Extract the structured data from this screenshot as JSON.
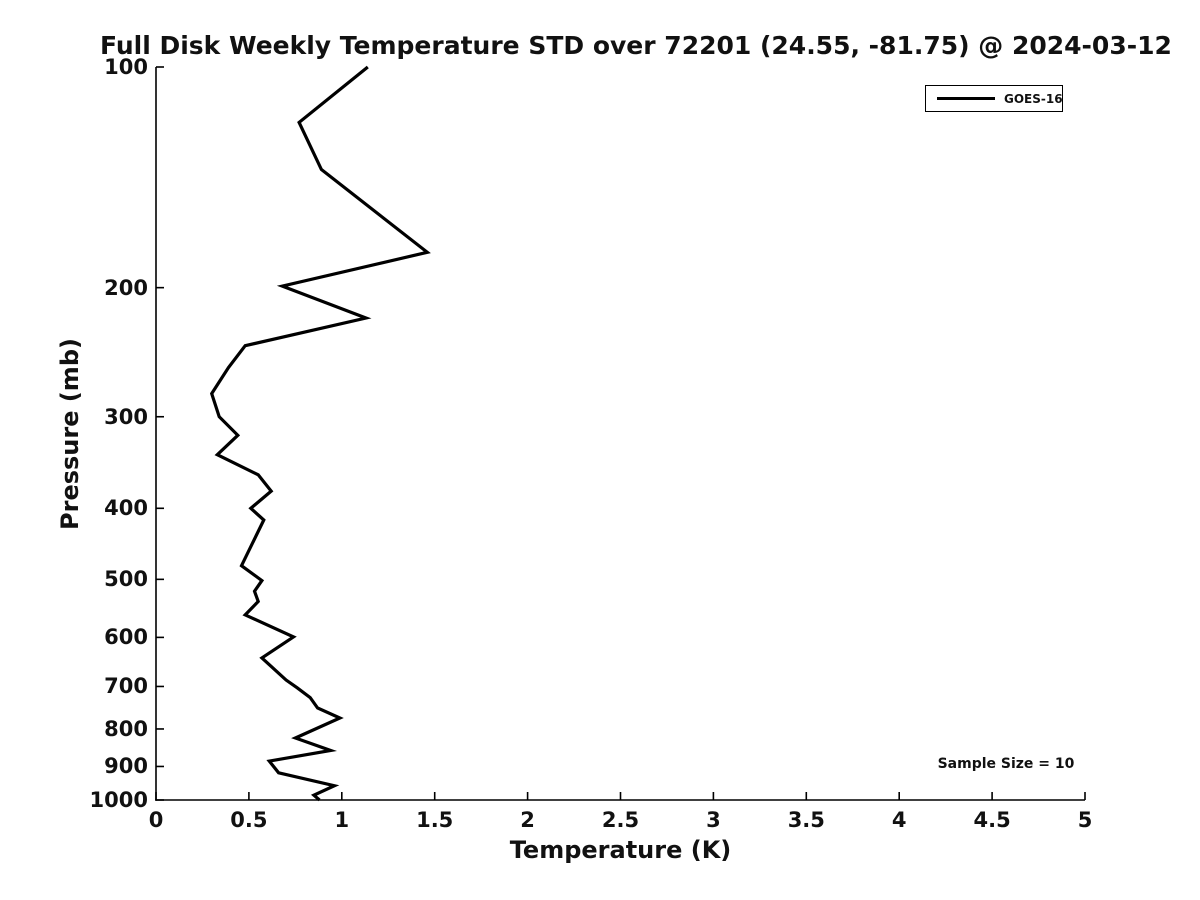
{
  "colors": {
    "line": "#000000",
    "text": "#111111",
    "background": "#ffffff"
  },
  "chart_data": {
    "type": "line",
    "title": "Full Disk Weekly Temperature STD over 72201 (24.55, -81.75) @ 2024-03-12",
    "xlabel": "Temperature (K)",
    "ylabel": "Pressure (mb)",
    "xlim": [
      0,
      5
    ],
    "ylim": [
      100,
      1000
    ],
    "yscale": "log",
    "y_inverted": true,
    "grid": false,
    "x_ticks": [
      0,
      0.5,
      1,
      1.5,
      2,
      2.5,
      3,
      3.5,
      4,
      4.5,
      5
    ],
    "x_tick_labels": [
      "0",
      "0.5",
      "1",
      "1.5",
      "2",
      "2.5",
      "3",
      "3.5",
      "4",
      "4.5",
      "5"
    ],
    "y_ticks": [
      100,
      200,
      300,
      400,
      500,
      600,
      700,
      800,
      900,
      1000
    ],
    "y_tick_labels": [
      "100",
      "200",
      "300",
      "400",
      "500",
      "600",
      "700",
      "800",
      "900",
      "1000"
    ],
    "legend": {
      "position": "top-right",
      "entries": [
        {
          "label": "GOES-16",
          "color": "#000000",
          "linewidth": 3
        }
      ]
    },
    "annotation": "Sample Size = 10",
    "series": [
      {
        "name": "GOES-16",
        "color": "#000000",
        "points_temperature_pressure": [
          [
            1.14,
            100
          ],
          [
            0.77,
            119
          ],
          [
            0.89,
            138
          ],
          [
            1.46,
            179
          ],
          [
            0.68,
            199
          ],
          [
            1.13,
            220
          ],
          [
            0.48,
            240
          ],
          [
            0.39,
            257
          ],
          [
            0.3,
            279
          ],
          [
            0.34,
            300
          ],
          [
            0.44,
            318
          ],
          [
            0.33,
            338
          ],
          [
            0.55,
            360
          ],
          [
            0.62,
            379
          ],
          [
            0.51,
            400
          ],
          [
            0.58,
            415
          ],
          [
            0.46,
            479
          ],
          [
            0.57,
            502
          ],
          [
            0.53,
            519
          ],
          [
            0.55,
            536
          ],
          [
            0.48,
            559
          ],
          [
            0.74,
            599
          ],
          [
            0.57,
            640
          ],
          [
            0.7,
            686
          ],
          [
            0.76,
            703
          ],
          [
            0.83,
            725
          ],
          [
            0.87,
            749
          ],
          [
            0.99,
            773
          ],
          [
            0.75,
            823
          ],
          [
            0.94,
            856
          ],
          [
            0.61,
            885
          ],
          [
            0.66,
            918
          ],
          [
            0.96,
            956
          ],
          [
            0.85,
            985
          ],
          [
            0.88,
            1000
          ]
        ]
      }
    ]
  }
}
